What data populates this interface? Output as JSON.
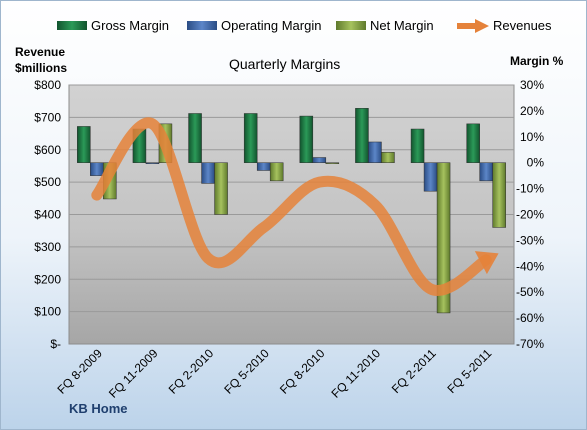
{
  "chart_data": {
    "type": "bar+line",
    "title": "Quarterly Margins",
    "footer": "KB Home",
    "left_axis": {
      "title_lines": [
        "Revenue",
        "$millions"
      ],
      "range": [
        0,
        800
      ],
      "ticks": [
        0,
        100,
        200,
        300,
        400,
        500,
        600,
        700,
        800
      ],
      "tick_labels": [
        "$-",
        "$100",
        "$200",
        "$300",
        "$400",
        "$500",
        "$600",
        "$700",
        "$800"
      ]
    },
    "right_axis": {
      "title": "Margin %",
      "range": [
        -70,
        30
      ],
      "ticks": [
        30,
        20,
        10,
        0,
        -10,
        -20,
        -30,
        -40,
        -50,
        -60,
        -70
      ],
      "tick_labels": [
        "30%",
        "20%",
        "10%",
        "0%",
        "-10%",
        "-20%",
        "-30%",
        "-40%",
        "-50%",
        "-60%",
        "-70%"
      ]
    },
    "categories": [
      "FQ 8-2009",
      "FQ 11-2009",
      "FQ 2-2010",
      "FQ 5-2010",
      "FQ 8-2010",
      "FQ 11-2010",
      "FQ 2-2011",
      "FQ 5-2011"
    ],
    "series": [
      {
        "name": "Gross Margin",
        "axis": "right",
        "kind": "bar",
        "color": "#1f7a45",
        "values": [
          14,
          13,
          19,
          19,
          18,
          21,
          13,
          15
        ]
      },
      {
        "name": "Operating Margin",
        "axis": "right",
        "kind": "bar",
        "color": "#3f6bb0",
        "values": [
          -5,
          0,
          -8,
          -3,
          2,
          8,
          -11,
          -7
        ]
      },
      {
        "name": "Net Margin",
        "axis": "right",
        "kind": "bar",
        "color": "#8aa64a",
        "values": [
          -14,
          15,
          -20,
          -7,
          0,
          4,
          -58,
          -25
        ]
      },
      {
        "name": "Revenues",
        "axis": "left",
        "kind": "line",
        "color": "#e5823a",
        "values": [
          460,
          680,
          265,
          360,
          500,
          430,
          170,
          260
        ]
      }
    ],
    "grid": true,
    "legend_position": "top"
  }
}
